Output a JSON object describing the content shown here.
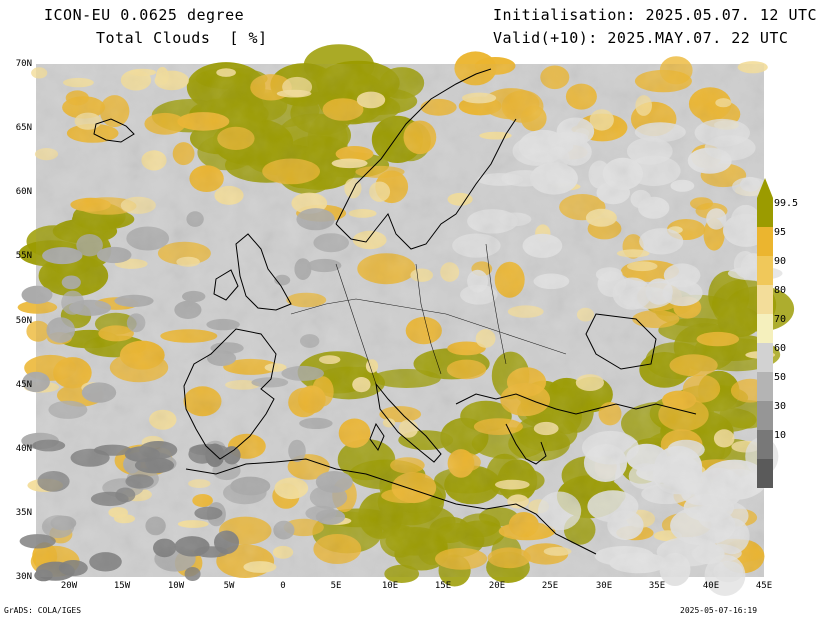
{
  "header": {
    "model": "ICON-EU 0.0625 degree",
    "variable": "Total Clouds  [ %]",
    "init": "Initialisation: 2025.05.07. 12 UTC",
    "valid": "Valid(+10): 2025.MAY.07. 22 UTC"
  },
  "axes": {
    "lat_labels": [
      "70N",
      "65N",
      "60N",
      "55N",
      "50N",
      "45N",
      "40N",
      "35N",
      "30N"
    ],
    "lon_labels": [
      "20W",
      "15W",
      "10W",
      "5W",
      "0",
      "5E",
      "10E",
      "15E",
      "20E",
      "25E",
      "30E",
      "35E",
      "40E",
      "45E"
    ]
  },
  "legend": {
    "labels": [
      "99.5",
      "95",
      "90",
      "80",
      "70",
      "60",
      "50",
      "30",
      "10"
    ],
    "colors": [
      "#9b9b00",
      "#ebb52f",
      "#f0c85a",
      "#f3dd9a",
      "#f5f0bd",
      "#d2d2d2",
      "#b4b4b4",
      "#969696",
      "#787878",
      "#5a5a5a"
    ]
  },
  "footer": {
    "left": "GrADS: COLA/IGES",
    "right": "2025-05-07-16:19"
  },
  "palette": {
    "olive": "#9b9b00",
    "orange": "#ebb52f",
    "light": "#f3dd9a",
    "grey_light": "#e1e1e1",
    "grey_mid": "#aaaaaa",
    "grey_dark": "#7d7d7d"
  }
}
